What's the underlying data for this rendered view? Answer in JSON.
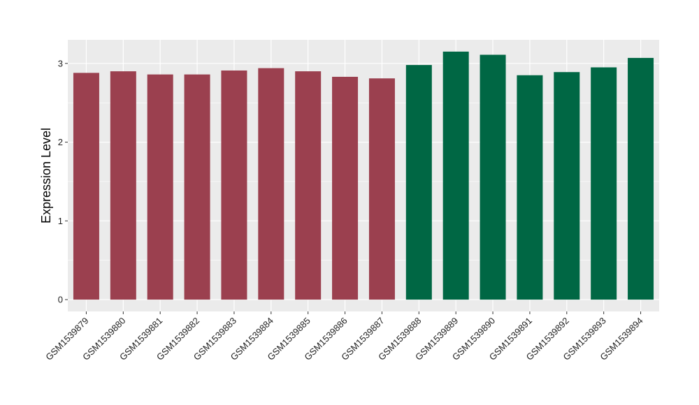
{
  "chart_data": {
    "type": "bar",
    "title": "",
    "xlabel": "",
    "ylabel": "Expression Level",
    "ylim": [
      -0.15,
      3.3
    ],
    "yticks": [
      0,
      1,
      2,
      3
    ],
    "grid": true,
    "legend": "none",
    "categories": [
      "GSM1539879",
      "GSM1539880",
      "GSM1539881",
      "GSM1539882",
      "GSM1539883",
      "GSM1539884",
      "GSM1539885",
      "GSM1539886",
      "GSM1539887",
      "GSM1539888",
      "GSM1539889",
      "GSM1539890",
      "GSM1539891",
      "GSM1539892",
      "GSM1539893",
      "GSM1539894"
    ],
    "values": [
      2.88,
      2.9,
      2.86,
      2.86,
      2.91,
      2.94,
      2.9,
      2.83,
      2.81,
      2.98,
      3.15,
      3.11,
      2.85,
      2.89,
      2.95,
      3.07
    ],
    "groups": [
      0,
      0,
      0,
      0,
      0,
      0,
      0,
      0,
      0,
      1,
      1,
      1,
      1,
      1,
      1,
      1
    ],
    "group_colors": [
      "#9B404F",
      "#006744"
    ],
    "panel_color": "#EBEBEB",
    "grid_color": "#FFFFFF"
  }
}
